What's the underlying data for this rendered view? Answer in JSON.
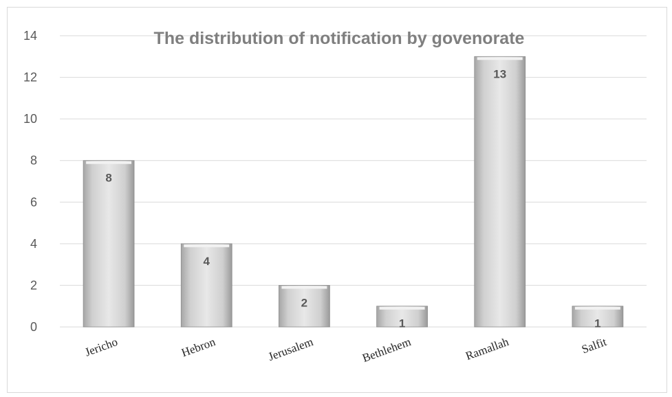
{
  "chart_data": {
    "type": "bar",
    "title": "The distribution of notification by govenorate",
    "categories": [
      "Jericho",
      "Hebron",
      "Jerusalem",
      "Bethlehem",
      "Ramallah",
      "Salfit"
    ],
    "values": [
      8,
      4,
      2,
      1,
      13,
      1
    ],
    "data_labels": [
      "8",
      "4",
      "2",
      "1",
      "13",
      "1"
    ],
    "ylim": [
      0,
      14
    ],
    "yticks": [
      0,
      2,
      4,
      6,
      8,
      10,
      12,
      14
    ],
    "grid": true,
    "legend": "none",
    "bar_color": "#cfcfcf"
  }
}
